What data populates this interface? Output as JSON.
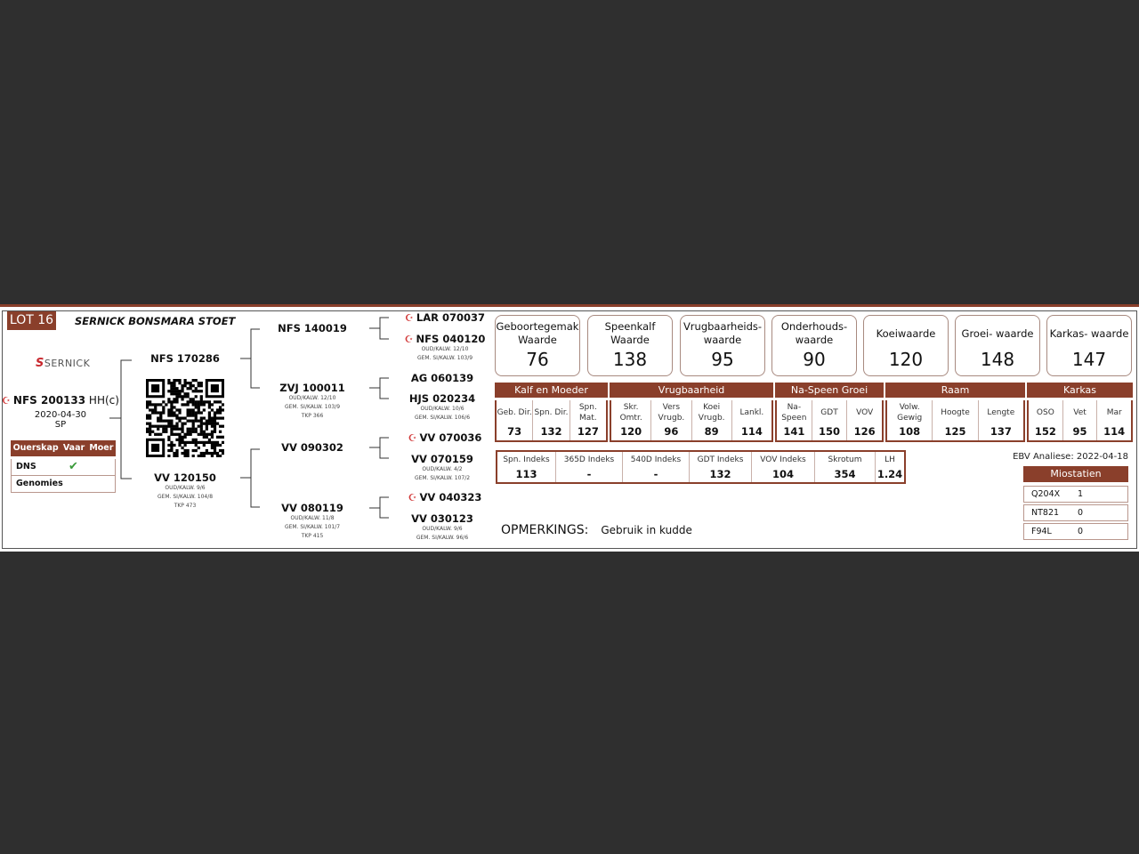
{
  "lot": "LOT 16",
  "stud": "SERNICK BONSMARA STOET",
  "logo": {
    "mark": "S",
    "text": "SERNICK"
  },
  "animal": {
    "id": "NFS 200133",
    "tag": "HH(c)",
    "dob": "2020-04-30",
    "code": "SP",
    "icon": "genomic-icon"
  },
  "ownership": {
    "headers": [
      "Ouerskap",
      "Vaar",
      "Moer"
    ],
    "rows": [
      {
        "label": "DNS",
        "vaar": "✔",
        "moer": ""
      },
      {
        "label": "Genomies",
        "vaar": "",
        "moer": ""
      }
    ]
  },
  "sire": {
    "id": "NFS 170286"
  },
  "dam": {
    "id": "VV 120150",
    "lines": [
      "OUD/KALW. 9/6",
      "GEM. SI/KALW. 104/8",
      "TKP 473"
    ]
  },
  "gp": [
    {
      "id": "NFS 140019",
      "lines": []
    },
    {
      "id": "ZVJ 100011",
      "lines": [
        "OUD/KALW. 12/10",
        "GEM. SI/KALW. 103/9",
        "TKP 366"
      ]
    },
    {
      "id": "VV 090302",
      "lines": []
    },
    {
      "id": "VV 080119",
      "lines": [
        "OUD/KALW. 11/8",
        "GEM. SI/KALW. 101/7",
        "TKP 415"
      ]
    }
  ],
  "ggp": [
    {
      "id": "LAR 070037",
      "genomic": true,
      "lines": []
    },
    {
      "id": "NFS 040120",
      "genomic": true,
      "lines": [
        "OUD/KALW. 12/10",
        "GEM. SI/KALW. 103/9"
      ]
    },
    {
      "id": "AG 060139",
      "genomic": false,
      "lines": []
    },
    {
      "id": "HJS 020234",
      "genomic": false,
      "lines": [
        "OUD/KALW. 10/6",
        "GEM. SI/KALW. 106/6"
      ]
    },
    {
      "id": "VV 070036",
      "genomic": true,
      "lines": []
    },
    {
      "id": "VV 070159",
      "genomic": false,
      "lines": [
        "OUD/KALW. 4/2",
        "GEM. SI/KALW. 107/2"
      ]
    },
    {
      "id": "VV 040323",
      "genomic": true,
      "lines": []
    },
    {
      "id": "VV 030123",
      "genomic": false,
      "lines": [
        "OUD/KALW. 9/6",
        "GEM. SI/KALW. 96/6"
      ]
    }
  ],
  "values": [
    {
      "label": "Geboortegemak Waarde",
      "value": "76"
    },
    {
      "label": "Speenkalf Waarde",
      "value": "138"
    },
    {
      "label": "Vrugbaarheids- waarde",
      "value": "95"
    },
    {
      "label": "Onderhouds- waarde",
      "value": "90"
    },
    {
      "label": "Koeiwaarde",
      "value": "120"
    },
    {
      "label": "Groei- waarde",
      "value": "148"
    },
    {
      "label": "Karkas- waarde",
      "value": "147"
    }
  ],
  "sections": [
    {
      "title": "Kalf en Moeder",
      "cells": [
        {
          "l": "Geb. Dir.",
          "v": "73"
        },
        {
          "l": "Spn. Dir.",
          "v": "132"
        },
        {
          "l": "Spn. Mat.",
          "v": "127"
        }
      ]
    },
    {
      "title": "Vrugbaarheid",
      "cells": [
        {
          "l": "Skr. Omtr.",
          "v": "120"
        },
        {
          "l": "Vers Vrugb.",
          "v": "96"
        },
        {
          "l": "Koei Vrugb.",
          "v": "89"
        },
        {
          "l": "Lankl.",
          "v": "114"
        }
      ]
    },
    {
      "title": "Na-Speen Groei",
      "cells": [
        {
          "l": "Na- Speen",
          "v": "141"
        },
        {
          "l": "GDT",
          "v": "150"
        },
        {
          "l": "VOV",
          "v": "126"
        }
      ]
    },
    {
      "title": "Raam",
      "cells": [
        {
          "l": "Volw. Gewig",
          "v": "108"
        },
        {
          "l": "Hoogte",
          "v": "125"
        },
        {
          "l": "Lengte",
          "v": "137"
        }
      ]
    },
    {
      "title": "Karkas",
      "cells": [
        {
          "l": "OSO",
          "v": "152"
        },
        {
          "l": "Vet",
          "v": "95"
        },
        {
          "l": "Mar",
          "v": "114"
        }
      ]
    }
  ],
  "indexes": [
    {
      "l": "Spn. Indeks",
      "v": "113"
    },
    {
      "l": "365D Indeks",
      "v": "-"
    },
    {
      "l": "540D Indeks",
      "v": "-"
    },
    {
      "l": "GDT Indeks",
      "v": "132"
    },
    {
      "l": "VOV Indeks",
      "v": "104"
    },
    {
      "l": "Skrotum",
      "v": "354"
    },
    {
      "l": "LH",
      "v": "1.24"
    }
  ],
  "ebv": "EBV Analiese: 2022-04-18",
  "miostatien": {
    "title": "Miostatien",
    "rows": [
      {
        "k": "Q204X",
        "v": "1"
      },
      {
        "k": "NT821",
        "v": "0"
      },
      {
        "k": "F94L",
        "v": "0"
      }
    ]
  },
  "remarks": {
    "label": "OPMERKINGS:",
    "text": "Gebruik in kudde"
  },
  "colors": {
    "brand": "#8a3f2b",
    "background": "#2f2f2f",
    "check": "#3a9a3a",
    "genomic": "#d23a3a"
  }
}
